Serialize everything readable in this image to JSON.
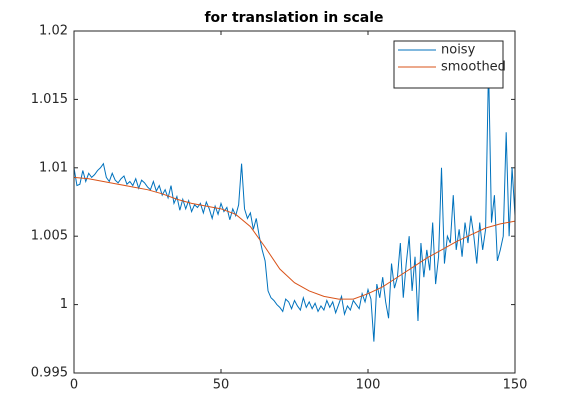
{
  "chart_data": {
    "type": "line",
    "title": "for translation in scale",
    "xlim": [
      0,
      150
    ],
    "xticks": [
      0,
      50,
      100,
      150
    ],
    "ylim": [
      0.995,
      1.02
    ],
    "yticks": [
      0.995,
      1,
      1.005,
      1.01,
      1.015,
      1.02
    ],
    "grid": false,
    "legend": "northeast",
    "series": [
      {
        "name": "noisy",
        "color": "#0072bd",
        "x": [
          0,
          1,
          2,
          3,
          4,
          5,
          6,
          7,
          8,
          9,
          10,
          11,
          12,
          13,
          14,
          15,
          16,
          17,
          18,
          19,
          20,
          21,
          22,
          23,
          24,
          25,
          26,
          27,
          28,
          29,
          30,
          31,
          32,
          33,
          34,
          35,
          36,
          37,
          38,
          39,
          40,
          41,
          42,
          43,
          44,
          45,
          46,
          47,
          48,
          49,
          50,
          51,
          52,
          53,
          54,
          55,
          56,
          57,
          58,
          59,
          60,
          61,
          62,
          63,
          64,
          65,
          66,
          67,
          68,
          69,
          70,
          71,
          72,
          73,
          74,
          75,
          76,
          77,
          78,
          79,
          80,
          81,
          82,
          83,
          84,
          85,
          86,
          87,
          88,
          89,
          90,
          91,
          92,
          93,
          94,
          95,
          96,
          97,
          98,
          99,
          100,
          101,
          102,
          103,
          104,
          105,
          106,
          107,
          108,
          109,
          110,
          111,
          112,
          113,
          114,
          115,
          116,
          117,
          118,
          119,
          120,
          121,
          122,
          123,
          124,
          125,
          126,
          127,
          128,
          129,
          130,
          131,
          132,
          133,
          134,
          135,
          136,
          137,
          138,
          139,
          140,
          141,
          142,
          143,
          144,
          145,
          146,
          147,
          148,
          149,
          150
        ],
        "values": [
          1.01,
          1.0087,
          1.0088,
          1.0098,
          1.009,
          1.0096,
          1.0093,
          1.0095,
          1.0098,
          1.01,
          1.0103,
          1.0093,
          1.009,
          1.0096,
          1.0091,
          1.0089,
          1.0092,
          1.0094,
          1.0088,
          1.009,
          1.0087,
          1.0092,
          1.0085,
          1.0091,
          1.0089,
          1.0086,
          1.0084,
          1.009,
          1.0083,
          1.0087,
          1.008,
          1.0084,
          1.0078,
          1.0087,
          1.0074,
          1.0079,
          1.0069,
          1.0077,
          1.007,
          1.0076,
          1.0068,
          1.0073,
          1.0071,
          1.0074,
          1.0067,
          1.0075,
          1.007,
          1.0063,
          1.0072,
          1.0066,
          1.0074,
          1.0068,
          1.0071,
          1.0062,
          1.007,
          1.0065,
          1.0073,
          1.0103,
          1.007,
          1.0063,
          1.0067,
          1.0055,
          1.0063,
          1.005,
          1.004,
          1.0032,
          1.001,
          1.0005,
          1.0003,
          1.0,
          0.9998,
          0.9995,
          1.0004,
          1.0002,
          0.9997,
          1.0003,
          0.9999,
          0.9996,
          1.0005,
          0.9998,
          1.0002,
          0.9997,
          1.0001,
          0.9995,
          0.9999,
          0.9996,
          1.0003,
          0.9998,
          1.0002,
          0.9994,
          1.0,
          1.0006,
          0.9993,
          0.9999,
          0.9996,
          1.0003,
          1.0,
          0.9997,
          1.0008,
          1.0002,
          1.0011,
          1.0004,
          0.9973,
          1.0015,
          1.0005,
          1.002,
          1.0002,
          0.999,
          1.003,
          1.0012,
          1.002,
          1.0045,
          1.0005,
          1.003,
          1.005,
          1.001,
          1.0035,
          0.9988,
          1.0045,
          1.002,
          1.004,
          1.0025,
          1.006,
          1.0015,
          1.0035,
          1.01,
          1.003,
          1.005,
          1.0045,
          1.008,
          1.004,
          1.0055,
          1.0035,
          1.006,
          1.0045,
          1.0065,
          1.005,
          1.003,
          1.006,
          1.004,
          1.0055,
          1.0175,
          1.006,
          1.008,
          1.0032,
          1.004,
          1.005,
          1.0126,
          1.005,
          1.01,
          1.0065
        ]
      },
      {
        "name": "smoothed",
        "color": "#d95319",
        "x": [
          0,
          5,
          10,
          15,
          20,
          25,
          30,
          35,
          40,
          45,
          50,
          55,
          60,
          65,
          70,
          75,
          80,
          85,
          90,
          95,
          100,
          105,
          110,
          115,
          120,
          125,
          130,
          135,
          140,
          145,
          150
        ],
        "values": [
          1.0093,
          1.0092,
          1.009,
          1.0088,
          1.0086,
          1.0084,
          1.0081,
          1.0077,
          1.0074,
          1.0072,
          1.007,
          1.0066,
          1.0057,
          1.0042,
          1.0026,
          1.0016,
          1.001,
          1.0006,
          1.0004,
          1.0004,
          1.0008,
          1.0013,
          1.002,
          1.0027,
          1.0034,
          1.004,
          1.0046,
          1.0051,
          1.0056,
          1.0059,
          1.0061
        ]
      }
    ]
  }
}
